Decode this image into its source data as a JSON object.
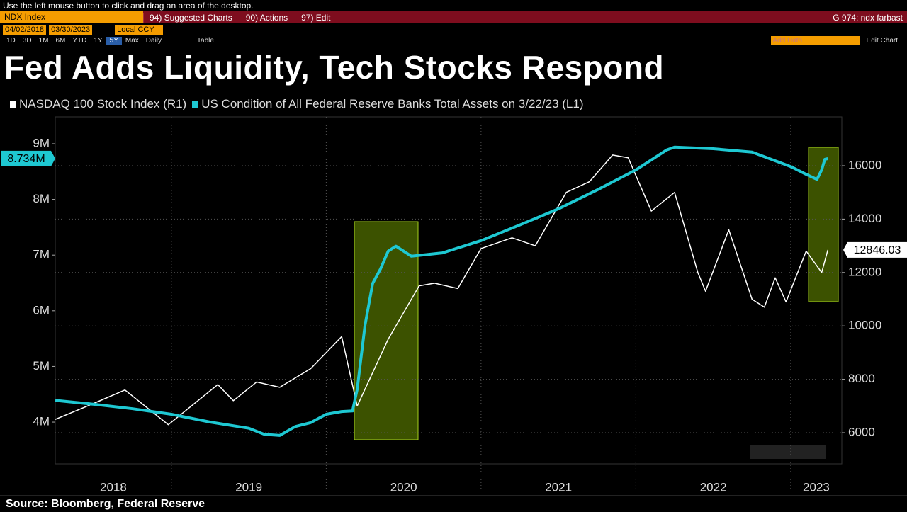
{
  "status_bar": {
    "hint": "Use the left mouse button to click and drag an area of the desktop."
  },
  "menu_bar": {
    "security": "NDX Index",
    "items": [
      "94) Suggested Charts",
      "90) Actions",
      "97) Edit"
    ],
    "right": "G 974: ndx farbast"
  },
  "toolbar": {
    "start_date": "04/02/2018",
    "end_date": "03/30/2023",
    "currency": "Local CCY",
    "periods": [
      "1D",
      "3D",
      "1M",
      "6M",
      "YTD",
      "1Y",
      "5Y",
      "Max"
    ],
    "frequency": "Daily",
    "table": "Table",
    "add_data": "Add Data",
    "edit_chart": "Edit Chart"
  },
  "source": "Source: Bloomberg, Federal Reserve",
  "chart_data": {
    "type": "line",
    "title": "Fed Adds Liquidity, Tech Stocks Respond",
    "xlim": [
      2018.25,
      2023.33
    ],
    "xticks": [
      2018,
      2019,
      2020,
      2021,
      2022,
      2023
    ],
    "ylim": [
      3250000,
      9483000
    ],
    "yticks": [
      {
        "value": 4000000,
        "label": "4M"
      },
      {
        "value": 5000000,
        "label": "5M"
      },
      {
        "value": 6000000,
        "label": "6M"
      },
      {
        "value": 7000000,
        "label": "7M"
      },
      {
        "value": 8000000,
        "label": "8M"
      },
      {
        "value": 9000000,
        "label": "9M"
      }
    ],
    "y2lim": [
      4833,
      17830
    ],
    "y2ticks": [
      6000,
      8000,
      10000,
      12000,
      14000,
      16000
    ],
    "grid": true,
    "series": [
      {
        "name": "NASDAQ 100 Stock Index  (R1)",
        "color": "#ffffff",
        "axis": "y2",
        "last_label": "12846.03",
        "x": [
          2018.25,
          2018.5,
          2018.7,
          2018.98,
          2019.3,
          2019.4,
          2019.55,
          2019.7,
          2019.9,
          2020.1,
          2020.2,
          2020.4,
          2020.6,
          2020.7,
          2020.85,
          2021.0,
          2021.2,
          2021.35,
          2021.55,
          2021.7,
          2021.85,
          2021.95,
          2022.1,
          2022.25,
          2022.4,
          2022.45,
          2022.6,
          2022.75,
          2022.83,
          2022.9,
          2022.97,
          2023.1,
          2023.2,
          2023.24
        ],
        "values": [
          6500,
          7100,
          7600,
          6300,
          7800,
          7200,
          7900,
          7700,
          8400,
          9600,
          7000,
          9500,
          11500,
          11600,
          11400,
          12900,
          13300,
          13000,
          15000,
          15400,
          16400,
          16300,
          14300,
          15000,
          12000,
          11300,
          13600,
          11000,
          10700,
          11800,
          10900,
          12800,
          12000,
          12846.03
        ]
      },
      {
        "name": "US Condition of All Federal Reserve Banks Total Assets  on 3/22/23 (L1)",
        "color": "#1ec8d2",
        "axis": "y",
        "last_label": "8.734M",
        "x": [
          2018.25,
          2018.5,
          2018.75,
          2019.0,
          2019.25,
          2019.5,
          2019.6,
          2019.7,
          2019.8,
          2019.9,
          2020.0,
          2020.1,
          2020.17,
          2020.2,
          2020.25,
          2020.3,
          2020.35,
          2020.4,
          2020.45,
          2020.55,
          2020.75,
          2021.0,
          2021.25,
          2021.5,
          2021.75,
          2022.0,
          2022.2,
          2022.25,
          2022.5,
          2022.75,
          2023.0,
          2023.1,
          2023.17,
          2023.2,
          2023.22,
          2023.24
        ],
        "values": [
          4390000,
          4320000,
          4240000,
          4140000,
          4000000,
          3890000,
          3780000,
          3760000,
          3920000,
          3990000,
          4140000,
          4190000,
          4200000,
          4590000,
          5730000,
          6490000,
          6750000,
          7070000,
          7160000,
          6980000,
          7040000,
          7260000,
          7540000,
          7830000,
          8170000,
          8530000,
          8890000,
          8940000,
          8910000,
          8850000,
          8590000,
          8450000,
          8360000,
          8530000,
          8720000,
          8734000
        ]
      }
    ]
  }
}
